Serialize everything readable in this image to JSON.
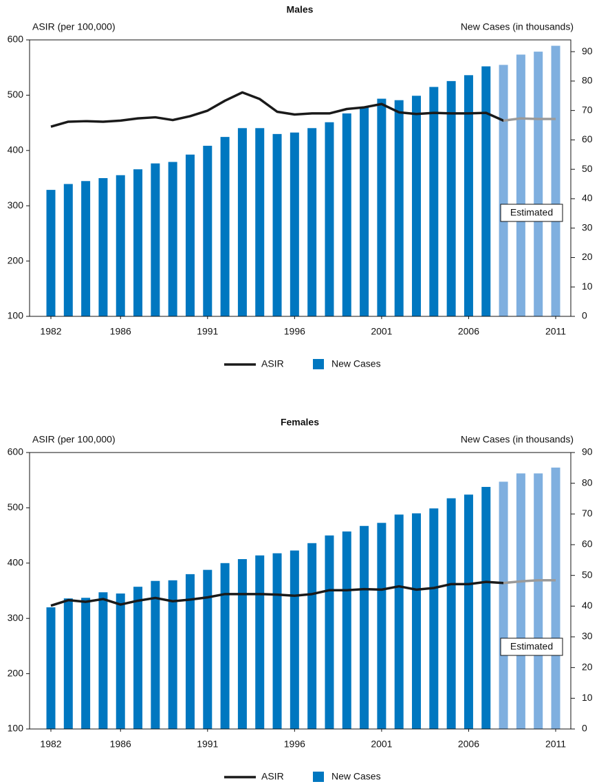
{
  "chart_data": [
    {
      "type": "combo",
      "title": "Males",
      "y_label": "ASIR (per 100,000)",
      "y2_label": "New Cases (in thousands)",
      "x": [
        1982,
        1983,
        1984,
        1985,
        1986,
        1987,
        1988,
        1989,
        1990,
        1991,
        1992,
        1993,
        1994,
        1995,
        1996,
        1997,
        1998,
        1999,
        2000,
        2001,
        2002,
        2003,
        2004,
        2005,
        2006,
        2007,
        2008,
        2009,
        2010,
        2011
      ],
      "xticks": [
        1982,
        1986,
        1991,
        1996,
        2001,
        2006,
        2011
      ],
      "ylim": [
        100,
        600
      ],
      "yticks": [
        100,
        200,
        300,
        400,
        500,
        600
      ],
      "y2lim": [
        0,
        94
      ],
      "y2ticks": [
        0,
        10,
        20,
        30,
        40,
        50,
        60,
        70,
        80,
        90
      ],
      "estimated": {
        "label": "Estimated",
        "from": 2008
      },
      "series": [
        {
          "name": "New Cases",
          "type": "bar",
          "axis": "y2",
          "color": "#0077c0",
          "estimated_color": "#7fafdf",
          "values": [
            43,
            45,
            46,
            47,
            48,
            50,
            52,
            52.5,
            55,
            58,
            61,
            64,
            64,
            62,
            62.5,
            64,
            66,
            69,
            71,
            74,
            73.5,
            75,
            78,
            80,
            82,
            85,
            85.5,
            89,
            90,
            92
          ]
        },
        {
          "name": "ASIR",
          "type": "line",
          "color": "#1a1a1a",
          "estimated_color": "#9a9a9a",
          "values": [
            443,
            452,
            453,
            452,
            454,
            458,
            460,
            455,
            462,
            472,
            490,
            505,
            493,
            470,
            465,
            467,
            467,
            475,
            478,
            484,
            469,
            466,
            468,
            467,
            467,
            468,
            454,
            458,
            457,
            457
          ]
        }
      ]
    },
    {
      "type": "combo",
      "title": "Females",
      "y_label": "ASIR (per 100,000)",
      "y2_label": "New Cases (in thousands)",
      "x": [
        1982,
        1983,
        1984,
        1985,
        1986,
        1987,
        1988,
        1989,
        1990,
        1991,
        1992,
        1993,
        1994,
        1995,
        1996,
        1997,
        1998,
        1999,
        2000,
        2001,
        2002,
        2003,
        2004,
        2005,
        2006,
        2007,
        2008,
        2009,
        2010,
        2011
      ],
      "xticks": [
        1982,
        1986,
        1991,
        1996,
        2001,
        2006,
        2011
      ],
      "ylim": [
        100,
        600
      ],
      "yticks": [
        100,
        200,
        300,
        400,
        500,
        600
      ],
      "y2lim": [
        0,
        90
      ],
      "y2ticks": [
        0,
        10,
        20,
        30,
        40,
        50,
        60,
        70,
        80,
        90
      ],
      "estimated": {
        "label": "Estimated",
        "from": 2008
      },
      "series": [
        {
          "name": "New Cases",
          "type": "bar",
          "axis": "y2",
          "color": "#0077c0",
          "estimated_color": "#7fafdf",
          "values": [
            39.6,
            42.5,
            42.7,
            44.5,
            44.1,
            46.3,
            48.2,
            48.4,
            50.4,
            51.8,
            54,
            55.3,
            56.5,
            57.2,
            58.1,
            60.5,
            63,
            64.3,
            66.1,
            67.1,
            69.8,
            70.2,
            71.8,
            75.1,
            76.3,
            78.8,
            80.5,
            83.2,
            83.2,
            85.1
          ]
        },
        {
          "name": "ASIR",
          "type": "line",
          "color": "#1a1a1a",
          "estimated_color": "#9a9a9a",
          "values": [
            323,
            333,
            330,
            335,
            325,
            332,
            337,
            331,
            334,
            338,
            344,
            344,
            344,
            343,
            341,
            344,
            351,
            351,
            353,
            352,
            358,
            352,
            355,
            362,
            362,
            366,
            364,
            367,
            369,
            369
          ]
        }
      ]
    }
  ]
}
